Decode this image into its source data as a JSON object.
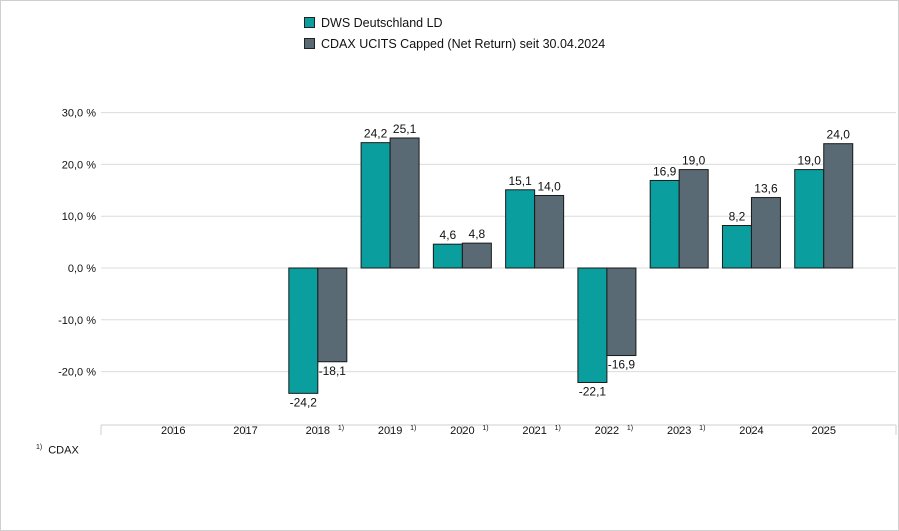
{
  "chart_data": {
    "type": "bar",
    "categories": [
      "2016",
      "2017",
      "2018",
      "2019",
      "2020",
      "2021",
      "2022",
      "2023",
      "2024",
      "2025"
    ],
    "category_footnotes": [
      "",
      "",
      "1)",
      "1)",
      "1)",
      "1)",
      "1)",
      "1)",
      "",
      ""
    ],
    "series": [
      {
        "name": "DWS Deutschland LD",
        "color": "#0a9e9e",
        "values": [
          null,
          null,
          -24.2,
          24.2,
          4.6,
          15.1,
          -22.1,
          16.9,
          8.2,
          19.0
        ],
        "labels": [
          "",
          "",
          "-24,2",
          "24,2",
          "4,6",
          "15,1",
          "-22,1",
          "16,9",
          "8,2",
          "19,0"
        ]
      },
      {
        "name": "CDAX UCITS Capped (Net Return) seit 30.04.2024",
        "color": "#5a6a75",
        "values": [
          null,
          null,
          -18.1,
          25.1,
          4.8,
          14.0,
          -16.9,
          19.0,
          13.6,
          24.0
        ],
        "labels": [
          "",
          "",
          "-18,1",
          "25,1",
          "4,8",
          "14,0",
          "-16,9",
          "19,0",
          "13,6",
          "24,0"
        ]
      }
    ],
    "yticks": [
      30,
      20,
      10,
      0,
      -10,
      -20
    ],
    "ytick_labels": [
      "30,0 %",
      "20,0 %",
      "10,0 %",
      "0,0 %",
      "-10,0 %",
      "-20,0 %"
    ],
    "ylim": [
      -30,
      30
    ],
    "grid": true,
    "legend": "top-center"
  },
  "footnote": {
    "mark": "1)",
    "text": "CDAX"
  }
}
